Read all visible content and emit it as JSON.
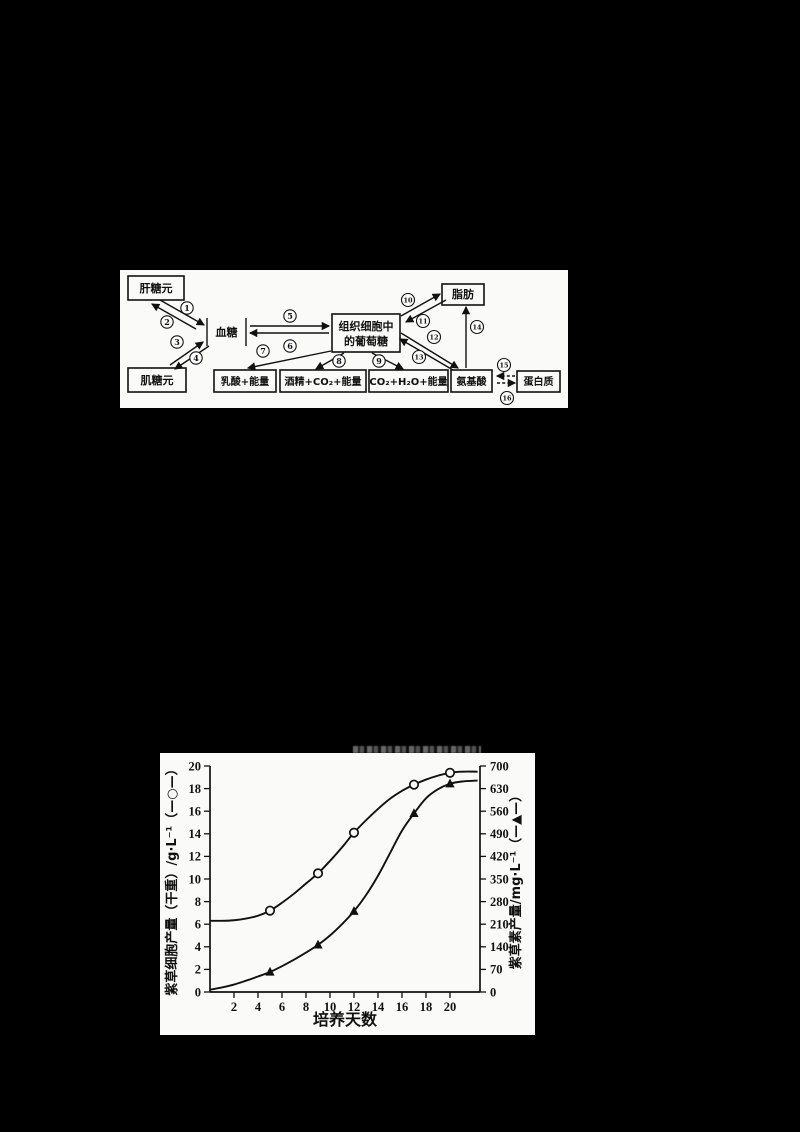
{
  "page": {
    "background": "#000000",
    "panel_background": "#fafaf8",
    "ink": "#111111"
  },
  "diagram": {
    "nodes": {
      "liver_glycogen": "肝糖元",
      "blood_sugar": "血糖",
      "muscle_glycogen": "肌糖元",
      "tissue_glucose_line1": "组织细胞中",
      "tissue_glucose_line2": "的葡萄糖",
      "fat": "脂肪",
      "lactate_energy": "乳酸+能量",
      "alcohol_co2_energy": "酒精+CO₂+能量",
      "co2_h2o_energy": "CO₂+H₂O+能量",
      "amino_acid": "氨基酸",
      "protein": "蛋白质"
    },
    "steps": [
      "1",
      "2",
      "3",
      "4",
      "5",
      "6",
      "7",
      "8",
      "9",
      "10",
      "11",
      "12",
      "13",
      "14",
      "15",
      "16"
    ]
  },
  "chart_data": {
    "type": "line",
    "xlabel": "培养天数",
    "x_ticks": [
      2,
      4,
      6,
      8,
      10,
      12,
      14,
      16,
      18,
      20
    ],
    "x_range": [
      0,
      22.5
    ],
    "left_axis": {
      "label": "紫草细胞产量（干重）/g·L⁻¹（—○—）",
      "ticks": [
        0,
        2,
        4,
        6,
        8,
        10,
        12,
        14,
        16,
        18,
        20
      ],
      "range": [
        0,
        20
      ]
    },
    "right_axis": {
      "label": "紫草素产量/mg·L⁻¹（—▲—）",
      "ticks": [
        0,
        70,
        140,
        210,
        280,
        350,
        420,
        490,
        560,
        630,
        700
      ],
      "range": [
        0,
        700
      ]
    },
    "series": [
      {
        "name": "紫草细胞产量（干重）",
        "axis": "left",
        "marker": "circle",
        "points": [
          [
            0,
            6.3
          ],
          [
            1,
            6.3
          ],
          [
            2,
            6.35
          ],
          [
            3,
            6.5
          ],
          [
            4,
            6.75
          ],
          [
            5,
            7.2
          ],
          [
            6,
            7.9
          ],
          [
            7,
            8.7
          ],
          [
            8,
            9.6
          ],
          [
            9,
            10.5
          ],
          [
            10,
            11.6
          ],
          [
            11,
            12.8
          ],
          [
            12,
            14.1
          ],
          [
            13,
            15.2
          ],
          [
            14,
            16.2
          ],
          [
            15,
            17.1
          ],
          [
            16,
            17.8
          ],
          [
            17,
            18.35
          ],
          [
            18,
            18.8
          ],
          [
            19,
            19.15
          ],
          [
            20,
            19.4
          ],
          [
            21,
            19.5
          ],
          [
            22.3,
            19.5
          ]
        ],
        "marker_points": [
          [
            5,
            7.2
          ],
          [
            9,
            10.5
          ],
          [
            12,
            14.1
          ],
          [
            17,
            18.35
          ],
          [
            20,
            19.4
          ]
        ]
      },
      {
        "name": "紫草素产量",
        "axis": "right",
        "marker": "triangle",
        "points": [
          [
            0,
            7
          ],
          [
            1,
            14
          ],
          [
            2,
            23
          ],
          [
            3,
            35
          ],
          [
            4,
            48
          ],
          [
            5,
            62
          ],
          [
            6,
            80
          ],
          [
            7,
            100
          ],
          [
            8,
            122
          ],
          [
            9,
            146
          ],
          [
            10,
            175
          ],
          [
            11,
            210
          ],
          [
            12,
            250
          ],
          [
            13,
            300
          ],
          [
            14,
            360
          ],
          [
            15,
            430
          ],
          [
            16,
            500
          ],
          [
            17,
            553
          ],
          [
            18,
            600
          ],
          [
            19,
            628
          ],
          [
            20,
            645
          ],
          [
            21,
            652
          ],
          [
            22.3,
            655
          ]
        ],
        "marker_points": [
          [
            5,
            62
          ],
          [
            9,
            146
          ],
          [
            12,
            250
          ],
          [
            17,
            553
          ],
          [
            20,
            645
          ]
        ]
      }
    ]
  }
}
